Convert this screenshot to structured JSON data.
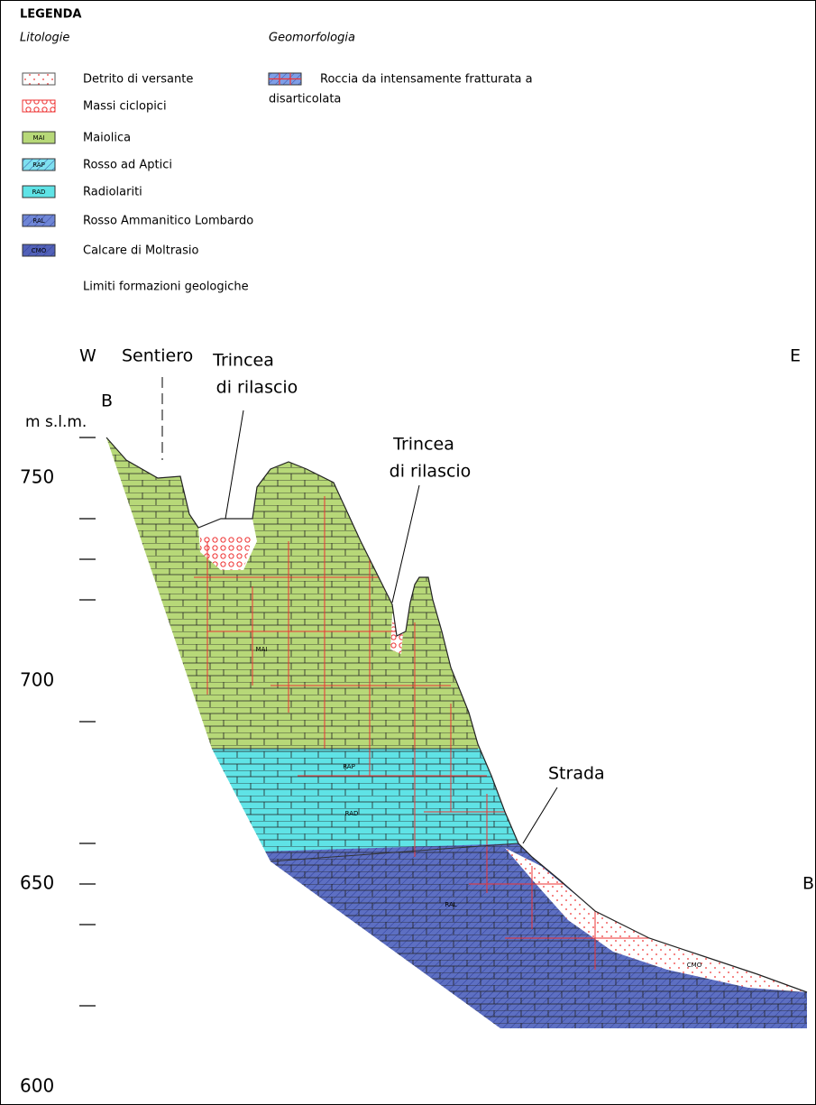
{
  "legend": {
    "title": "LEGENDA",
    "lithology": {
      "heading": "Litologie",
      "items": [
        {
          "label": "Detrito di versante"
        },
        {
          "label": "Massi ciclopici"
        },
        {
          "code": "MAI",
          "label": "Maiolica"
        },
        {
          "code": "RAP",
          "label": "Rosso ad Aptici"
        },
        {
          "code": "RAD",
          "label": "Radiolariti"
        },
        {
          "code": "RAL",
          "label": "Rosso Ammanitico Lombardo"
        },
        {
          "code": "CMO",
          "label": "Calcare di Moltrasio"
        },
        {
          "label": "Limiti formazioni geologiche"
        }
      ]
    },
    "geomorphology": {
      "heading": "Geomorfologia",
      "items": [
        {
          "label_lines": [
            "Roccia da intensamente fratturata a",
            "disarticolata"
          ]
        }
      ]
    }
  },
  "profile": {
    "west": "W",
    "east": "E",
    "start_point": "B",
    "end_point": "B",
    "unit": "m s.l.m.",
    "elevations": [
      750,
      700,
      650,
      600
    ],
    "labels": [
      {
        "lines": [
          "Sentiero"
        ]
      },
      {
        "lines": [
          "Trincea",
          "di rilascio"
        ]
      },
      {
        "lines": [
          "Trincea",
          "di rilascio"
        ]
      },
      {
        "lines": [
          "Strada"
        ]
      }
    ],
    "formation_codes": [
      "MAI",
      "RAP",
      "RAD",
      "RAL",
      "CMO"
    ]
  }
}
